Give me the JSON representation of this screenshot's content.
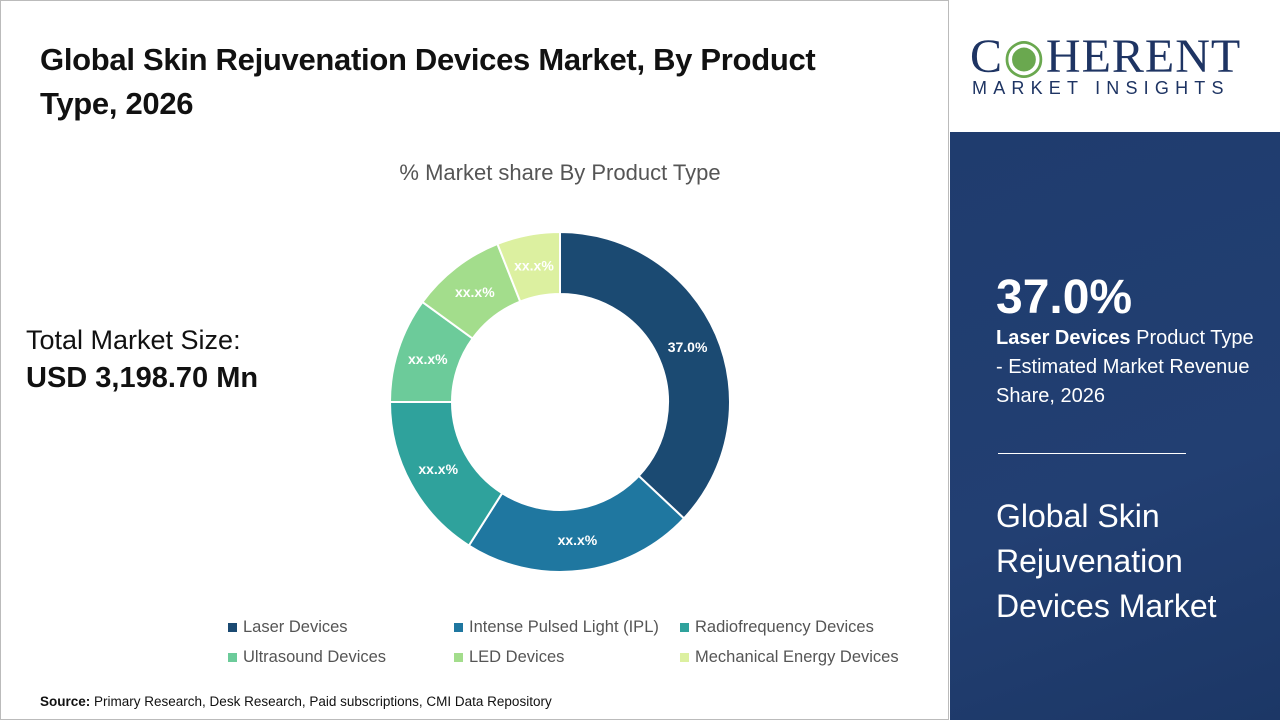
{
  "header": {
    "title": "Global Skin Rejuvenation Devices Market, By Product Type, 2026"
  },
  "total": {
    "label": "Total Market Size:",
    "value": "USD 3,198.70 Mn"
  },
  "chart_data": {
    "type": "pie",
    "donut": true,
    "title": "% Market share By Product Type",
    "categories": [
      "Laser Devices",
      "Intense Pulsed Light (IPL)",
      "Radiofrequency Devices",
      "Ultrasound Devices",
      "LED Devices",
      "Mechanical Energy Devices"
    ],
    "values": [
      37.0,
      22,
      16,
      10,
      9,
      6
    ],
    "labels": [
      "37.0%",
      "xx.x%",
      "xx.x%",
      "xx.x%",
      "xx.x%",
      "xx.x%"
    ],
    "colors": [
      "#1b4a72",
      "#1f77a0",
      "#2fa29c",
      "#6ccb9a",
      "#a3dd8c",
      "#dcf0a0"
    ],
    "legend_position": "bottom"
  },
  "source": {
    "label": "Source:",
    "text": "Primary Research, Desk Research, Paid subscriptions, CMI Data Repository"
  },
  "logo": {
    "main": "COHERENT",
    "sub": "MARKET INSIGHTS"
  },
  "panel": {
    "highlight": "37.0%",
    "desc_bold": "Laser Devices",
    "desc_rest": " Product Type - Estimated Market Revenue Share, 2026",
    "market": "Global Skin Rejuvenation Devices Market"
  }
}
